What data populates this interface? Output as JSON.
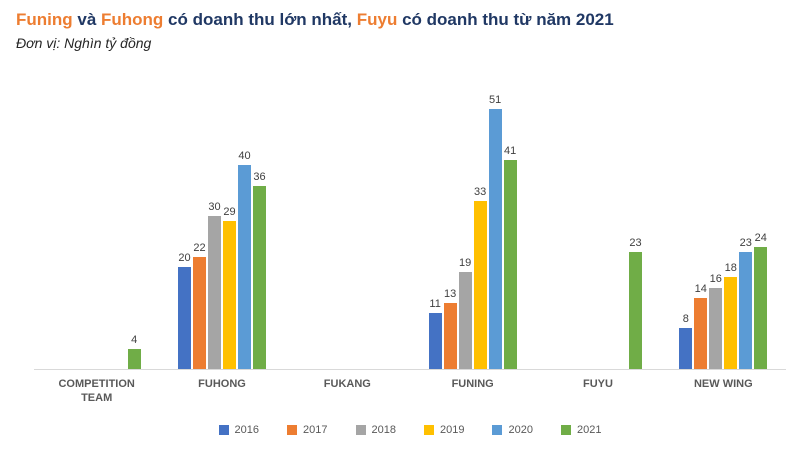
{
  "header": {
    "title_segments": [
      {
        "text": "Funing",
        "highlight": true
      },
      {
        "text": " và ",
        "highlight": false
      },
      {
        "text": "Fuhong",
        "highlight": true
      },
      {
        "text": " có doanh thu lớn nhất, ",
        "highlight": false
      },
      {
        "text": "Fuyu",
        "highlight": true
      },
      {
        "text": " có doanh thu từ năm 2021",
        "highlight": false
      }
    ],
    "subtitle": "Đơn vị: Nghìn tỷ đồng"
  },
  "colors": {
    "title_text": "#203864",
    "title_highlight": "#ED7D31",
    "axis_line": "#D9D9D9",
    "value_label_text": "#404040",
    "category_text": "#595959",
    "legend_text": "#595959"
  },
  "chart_data": {
    "type": "bar",
    "title": "Funing và Fuhong có doanh thu lớn nhất, Fuyu có doanh thu từ năm 2021",
    "subtitle": "Đơn vị: Nghìn tỷ đồng",
    "xlabel": "",
    "ylabel": "Nghìn tỷ đồng",
    "ylim": [
      0,
      55
    ],
    "grid": false,
    "data_labels": true,
    "legend_position": "bottom",
    "categories": [
      "COMPETITION TEAM",
      "FUHONG",
      "FUKANG",
      "FUNING",
      "FUYU",
      "NEW WING"
    ],
    "series": [
      {
        "name": "2016",
        "color": "#4472C4",
        "values": [
          null,
          20,
          null,
          11,
          null,
          8
        ]
      },
      {
        "name": "2017",
        "color": "#ED7D31",
        "values": [
          null,
          22,
          null,
          13,
          null,
          14
        ]
      },
      {
        "name": "2018",
        "color": "#A5A5A5",
        "values": [
          null,
          30,
          null,
          19,
          null,
          16
        ]
      },
      {
        "name": "2019",
        "color": "#FFC000",
        "values": [
          null,
          29,
          null,
          33,
          null,
          18
        ]
      },
      {
        "name": "2020",
        "color": "#5B9BD5",
        "values": [
          null,
          40,
          null,
          51,
          null,
          23
        ]
      },
      {
        "name": "2021",
        "color": "#70AD47",
        "values": [
          4,
          36,
          null,
          41,
          23,
          24
        ]
      }
    ]
  }
}
